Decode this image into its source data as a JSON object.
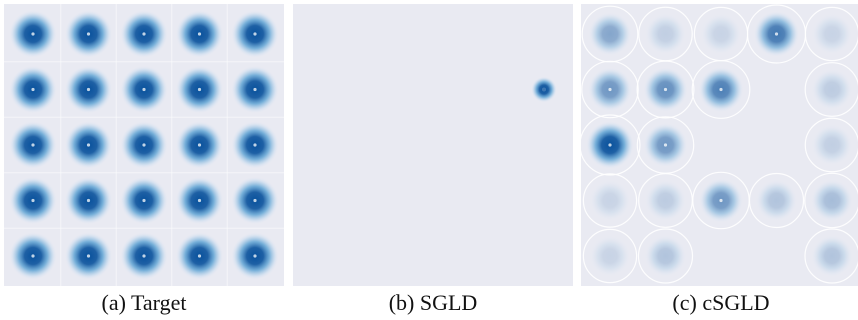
{
  "figure": {
    "panels": [
      {
        "id": "target",
        "caption": "(a) Target",
        "modes": [
          [
            1,
            1,
            1,
            1,
            1
          ],
          [
            1,
            1,
            1,
            1,
            1
          ],
          [
            1,
            1,
            1,
            1,
            1
          ],
          [
            1,
            1,
            1,
            1,
            1
          ],
          [
            1,
            1,
            1,
            1,
            1
          ]
        ]
      },
      {
        "id": "sgld",
        "caption": "(b) SGLD",
        "modes": [
          [
            0,
            0,
            0,
            0,
            0
          ],
          [
            0,
            0,
            0,
            0,
            1
          ],
          [
            0,
            0,
            0,
            0,
            0
          ],
          [
            0,
            0,
            0,
            0,
            0
          ],
          [
            0,
            0,
            0,
            0,
            0
          ]
        ]
      },
      {
        "id": "csgld",
        "caption": "(c) cSGLD",
        "modes": [
          [
            0.45,
            0.18,
            0.15,
            0.75,
            0.15
          ],
          [
            0.55,
            0.6,
            0.7,
            0.0,
            0.2
          ],
          [
            1.0,
            0.55,
            0.0,
            0.0,
            0.18
          ],
          [
            0.15,
            0.2,
            0.55,
            0.25,
            0.3
          ],
          [
            0.15,
            0.25,
            0.0,
            0.0,
            0.25
          ]
        ]
      }
    ],
    "colors": {
      "background": "#e9eaf2",
      "density_dark": "#08519c",
      "density_mid": "#4f9bd0",
      "density_light": "#c6dbef",
      "contour": "#ffffff"
    }
  }
}
